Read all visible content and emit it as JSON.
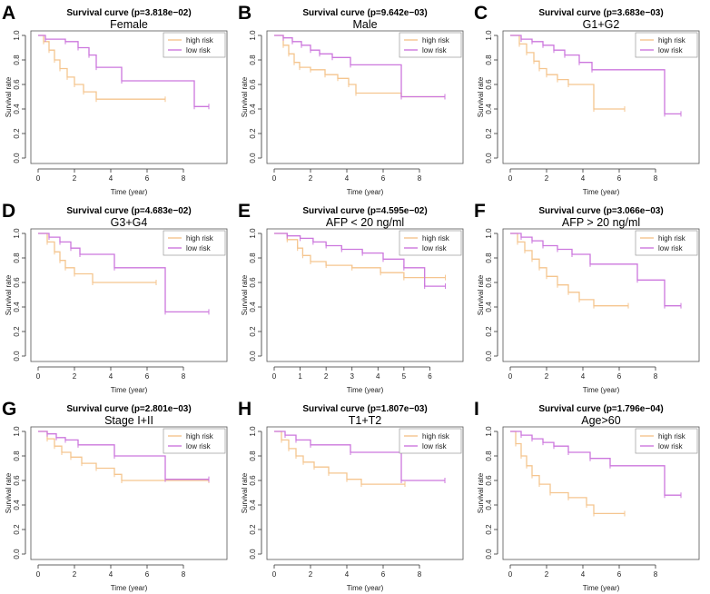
{
  "colors": {
    "high_risk": "#f5c58f",
    "low_risk": "#cc77dd",
    "axis": "#333333",
    "box": "#555555"
  },
  "chart_data": [
    {
      "type": "line",
      "panel_letter": "A",
      "title": "Survival curve (p=3.818e−02)",
      "subtitle": "Female",
      "xlabel": "Time (year)",
      "ylabel": "Survival rate",
      "xlim": [
        0,
        10
      ],
      "ylim": [
        0,
        1
      ],
      "xticks": [
        "0",
        "2",
        "4",
        "6",
        "8"
      ],
      "yticks": [
        "0.0",
        "0.2",
        "0.4",
        "0.6",
        "0.8",
        "1.0"
      ],
      "legend": [
        "high risk",
        "low risk"
      ],
      "legend_position": "top-right",
      "series": [
        {
          "name": "high risk",
          "x": [
            0,
            0.3,
            0.6,
            0.9,
            1.2,
            1.6,
            2.0,
            2.5,
            3.2,
            7.0
          ],
          "y": [
            1.0,
            0.95,
            0.88,
            0.8,
            0.73,
            0.66,
            0.6,
            0.54,
            0.48,
            0.48
          ]
        },
        {
          "name": "low risk",
          "x": [
            0,
            0.4,
            1.5,
            2.2,
            2.8,
            3.2,
            4.6,
            8.6,
            9.4
          ],
          "y": [
            1.0,
            0.97,
            0.95,
            0.9,
            0.84,
            0.74,
            0.63,
            0.42,
            0.42
          ]
        }
      ]
    },
    {
      "type": "line",
      "panel_letter": "B",
      "title": "Survival curve (p=9.642e−03)",
      "subtitle": "Male",
      "xlabel": "Time (year)",
      "ylabel": "Survival rate",
      "xlim": [
        0,
        10
      ],
      "ylim": [
        0,
        1
      ],
      "xticks": [
        "0",
        "2",
        "4",
        "6",
        "8"
      ],
      "yticks": [
        "0.0",
        "0.2",
        "0.4",
        "0.6",
        "0.8",
        "1.0"
      ],
      "legend": [
        "high risk",
        "low risk"
      ],
      "legend_position": "top-right",
      "series": [
        {
          "name": "high risk",
          "x": [
            0,
            0.5,
            0.8,
            1.1,
            1.4,
            2.0,
            2.8,
            3.5,
            4.1,
            4.5,
            7.0,
            9.4
          ],
          "y": [
            1.0,
            0.92,
            0.85,
            0.78,
            0.74,
            0.72,
            0.68,
            0.65,
            0.6,
            0.53,
            0.5,
            0.5
          ]
        },
        {
          "name": "low risk",
          "x": [
            0,
            0.5,
            1.0,
            1.5,
            2.0,
            2.5,
            3.2,
            4.2,
            7.0,
            9.4
          ],
          "y": [
            1.0,
            0.98,
            0.95,
            0.92,
            0.88,
            0.85,
            0.82,
            0.76,
            0.5,
            0.5
          ]
        }
      ]
    },
    {
      "type": "line",
      "panel_letter": "C",
      "title": "Survival curve (p=3.683e−03)",
      "subtitle": "G1+G2",
      "xlabel": "Time (year)",
      "ylabel": "Survival rate",
      "xlim": [
        0,
        10
      ],
      "ylim": [
        0,
        1
      ],
      "xticks": [
        "0",
        "2",
        "4",
        "6",
        "8"
      ],
      "yticks": [
        "0.0",
        "0.2",
        "0.4",
        "0.6",
        "0.8",
        "1.0"
      ],
      "legend": [
        "high risk",
        "low risk"
      ],
      "legend_position": "top-right",
      "series": [
        {
          "name": "high risk",
          "x": [
            0,
            0.5,
            0.9,
            1.3,
            1.6,
            2.0,
            2.6,
            3.2,
            4.6,
            6.3
          ],
          "y": [
            1.0,
            0.93,
            0.86,
            0.79,
            0.73,
            0.68,
            0.64,
            0.6,
            0.4,
            0.4
          ]
        },
        {
          "name": "low risk",
          "x": [
            0,
            0.6,
            1.2,
            1.8,
            2.4,
            3.0,
            3.8,
            4.5,
            8.5,
            9.4
          ],
          "y": [
            1.0,
            0.97,
            0.95,
            0.92,
            0.88,
            0.84,
            0.78,
            0.72,
            0.36,
            0.36
          ]
        }
      ]
    },
    {
      "type": "line",
      "panel_letter": "D",
      "title": "Survival curve (p=4.683e−02)",
      "subtitle": "G3+G4",
      "xlabel": "Time (year)",
      "ylabel": "Survival rate",
      "xlim": [
        0,
        10
      ],
      "ylim": [
        0,
        1
      ],
      "xticks": [
        "0",
        "2",
        "4",
        "6",
        "8"
      ],
      "yticks": [
        "0.0",
        "0.2",
        "0.4",
        "0.6",
        "0.8",
        "1.0"
      ],
      "legend": [
        "high risk",
        "low risk"
      ],
      "legend_position": "top-right",
      "series": [
        {
          "name": "high risk",
          "x": [
            0,
            0.5,
            0.9,
            1.2,
            1.5,
            2.0,
            3.0,
            6.5
          ],
          "y": [
            1.0,
            0.93,
            0.85,
            0.78,
            0.72,
            0.67,
            0.6,
            0.6
          ]
        },
        {
          "name": "low risk",
          "x": [
            0,
            0.6,
            1.2,
            1.8,
            2.3,
            4.2,
            7.0,
            9.4
          ],
          "y": [
            1.0,
            0.97,
            0.93,
            0.88,
            0.83,
            0.72,
            0.36,
            0.36
          ]
        }
      ]
    },
    {
      "type": "line",
      "panel_letter": "E",
      "title": "Survival curve (p=4.595e−02)",
      "subtitle": "AFP < 20 ng/ml",
      "xlabel": "Time (year)",
      "ylabel": "Survival rate",
      "xlim": [
        0,
        7
      ],
      "ylim": [
        0,
        1
      ],
      "xticks": [
        "0",
        "1",
        "2",
        "3",
        "4",
        "5",
        "6"
      ],
      "yticks": [
        "0.0",
        "0.2",
        "0.4",
        "0.6",
        "0.8",
        "1.0"
      ],
      "legend": [
        "high risk",
        "low risk"
      ],
      "legend_position": "top-right",
      "series": [
        {
          "name": "high risk",
          "x": [
            0,
            0.5,
            0.9,
            1.1,
            1.4,
            2.0,
            3.0,
            4.1,
            5.0,
            6.6
          ],
          "y": [
            1.0,
            0.95,
            0.88,
            0.82,
            0.77,
            0.74,
            0.72,
            0.68,
            0.64,
            0.64
          ]
        },
        {
          "name": "low risk",
          "x": [
            0,
            0.5,
            1.0,
            1.5,
            2.0,
            2.6,
            3.4,
            4.2,
            5.0,
            5.8,
            6.6
          ],
          "y": [
            1.0,
            0.98,
            0.96,
            0.93,
            0.9,
            0.87,
            0.84,
            0.79,
            0.72,
            0.57,
            0.57
          ]
        }
      ]
    },
    {
      "type": "line",
      "panel_letter": "F",
      "title": "Survival curve (p=3.066e−03)",
      "subtitle": "AFP > 20 ng/ml",
      "xlabel": "Time (year)",
      "ylabel": "Survival rate",
      "xlim": [
        0,
        10
      ],
      "ylim": [
        0,
        1
      ],
      "xticks": [
        "0",
        "2",
        "4",
        "6",
        "8"
      ],
      "yticks": [
        "0.0",
        "0.2",
        "0.4",
        "0.6",
        "0.8",
        "1.0"
      ],
      "legend": [
        "high risk",
        "low risk"
      ],
      "legend_position": "top-right",
      "series": [
        {
          "name": "high risk",
          "x": [
            0,
            0.4,
            0.8,
            1.2,
            1.6,
            2.0,
            2.6,
            3.2,
            3.8,
            4.6,
            6.5
          ],
          "y": [
            1.0,
            0.93,
            0.86,
            0.79,
            0.72,
            0.65,
            0.58,
            0.52,
            0.46,
            0.41,
            0.41
          ]
        },
        {
          "name": "low risk",
          "x": [
            0,
            0.6,
            1.2,
            1.8,
            2.6,
            3.4,
            4.4,
            7.0,
            8.5,
            9.4
          ],
          "y": [
            1.0,
            0.97,
            0.94,
            0.9,
            0.87,
            0.83,
            0.75,
            0.62,
            0.41,
            0.41
          ]
        }
      ]
    },
    {
      "type": "line",
      "panel_letter": "G",
      "title": "Survival curve (p=2.801e−03)",
      "subtitle": "Stage I+II",
      "xlabel": "Time (year)",
      "ylabel": "Survival rate",
      "xlim": [
        0,
        10
      ],
      "ylim": [
        0,
        1
      ],
      "xticks": [
        "0",
        "2",
        "4",
        "6",
        "8"
      ],
      "yticks": [
        "0.0",
        "0.2",
        "0.4",
        "0.6",
        "0.8",
        "1.0"
      ],
      "legend": [
        "high risk",
        "low risk"
      ],
      "legend_position": "top-right",
      "series": [
        {
          "name": "high risk",
          "x": [
            0,
            0.5,
            0.9,
            1.3,
            1.8,
            2.4,
            3.2,
            4.2,
            4.6,
            9.4
          ],
          "y": [
            1.0,
            0.94,
            0.88,
            0.83,
            0.79,
            0.74,
            0.7,
            0.65,
            0.6,
            0.6
          ]
        },
        {
          "name": "low risk",
          "x": [
            0,
            0.5,
            1.0,
            1.5,
            2.2,
            4.2,
            7.0,
            9.4
          ],
          "y": [
            1.0,
            0.98,
            0.95,
            0.93,
            0.89,
            0.8,
            0.61,
            0.61
          ]
        }
      ]
    },
    {
      "type": "line",
      "panel_letter": "H",
      "title": "Survival curve (p=1.807e−03)",
      "subtitle": "T1+T2",
      "xlabel": "Time (year)",
      "ylabel": "Survival rate",
      "xlim": [
        0,
        10
      ],
      "ylim": [
        0,
        1
      ],
      "xticks": [
        "0",
        "2",
        "4",
        "6",
        "8"
      ],
      "yticks": [
        "0.0",
        "0.2",
        "0.4",
        "0.6",
        "0.8",
        "1.0"
      ],
      "legend": [
        "high risk",
        "low risk"
      ],
      "legend_position": "top-right",
      "series": [
        {
          "name": "high risk",
          "x": [
            0,
            0.4,
            0.8,
            1.2,
            1.6,
            2.2,
            3.0,
            4.0,
            4.8,
            7.2
          ],
          "y": [
            1.0,
            0.93,
            0.86,
            0.8,
            0.75,
            0.71,
            0.66,
            0.61,
            0.57,
            0.57
          ]
        },
        {
          "name": "low risk",
          "x": [
            0,
            0.6,
            1.2,
            2.0,
            4.2,
            7.0,
            9.4
          ],
          "y": [
            1.0,
            0.97,
            0.93,
            0.89,
            0.83,
            0.6,
            0.6
          ]
        }
      ]
    },
    {
      "type": "line",
      "panel_letter": "I",
      "title": "Survival curve (p=1.796e−04)",
      "subtitle": "Age>60",
      "xlabel": "Time (year)",
      "ylabel": "Survival rate",
      "xlim": [
        0,
        10
      ],
      "ylim": [
        0,
        1
      ],
      "xticks": [
        "0",
        "2",
        "4",
        "6",
        "8"
      ],
      "yticks": [
        "0.0",
        "0.2",
        "0.4",
        "0.6",
        "0.8",
        "1.0"
      ],
      "legend": [
        "high risk",
        "low risk"
      ],
      "legend_position": "top-right",
      "series": [
        {
          "name": "high risk",
          "x": [
            0,
            0.3,
            0.6,
            0.9,
            1.2,
            1.6,
            2.2,
            3.2,
            4.2,
            4.6,
            6.3
          ],
          "y": [
            1.0,
            0.9,
            0.8,
            0.72,
            0.64,
            0.57,
            0.5,
            0.46,
            0.4,
            0.33,
            0.33
          ]
        },
        {
          "name": "low risk",
          "x": [
            0,
            0.6,
            1.2,
            1.8,
            2.4,
            3.2,
            4.4,
            5.5,
            8.5,
            9.4
          ],
          "y": [
            1.0,
            0.97,
            0.94,
            0.91,
            0.88,
            0.83,
            0.78,
            0.72,
            0.48,
            0.48
          ]
        }
      ]
    }
  ]
}
